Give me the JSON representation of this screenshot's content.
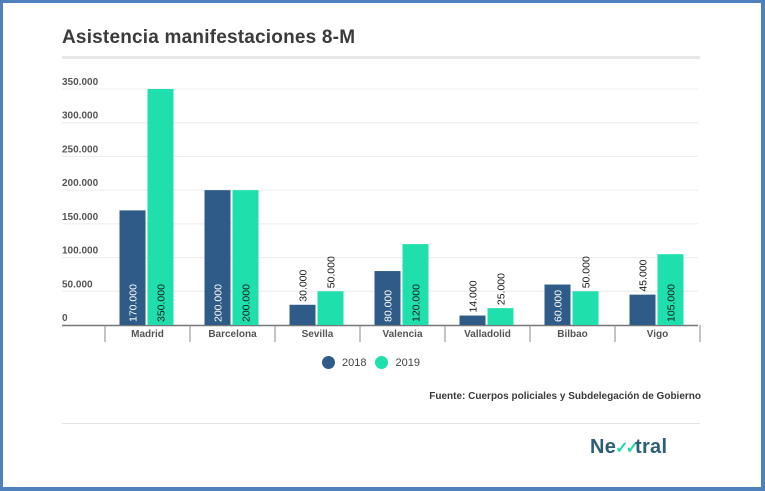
{
  "chart_data": {
    "type": "bar",
    "title": "Asistencia manifestaciones 8-M",
    "xlabel": "",
    "ylabel": "",
    "ylim": [
      0,
      350000
    ],
    "yticks": [
      0,
      50000,
      100000,
      150000,
      200000,
      250000,
      300000,
      350000
    ],
    "ytick_labels": [
      "0",
      "50.000",
      "100.000",
      "150.000",
      "200.000",
      "250.000",
      "300.000",
      "350.000"
    ],
    "grid": true,
    "categories": [
      "Madrid",
      "Barcelona",
      "Sevilla",
      "Valencia",
      "Valladolid",
      "Bilbao",
      "Vigo"
    ],
    "series": [
      {
        "name": "2018",
        "color": "#2e5b87",
        "values": [
          170000,
          200000,
          30000,
          80000,
          14000,
          60000,
          45000
        ],
        "labels": [
          "170.000",
          "200.000",
          "30.000",
          "80.000",
          "14.000",
          "60.000",
          "45.000"
        ]
      },
      {
        "name": "2019",
        "color": "#1fe0ac",
        "values": [
          350000,
          200000,
          50000,
          120000,
          25000,
          50000,
          105000
        ],
        "labels": [
          "350.000",
          "200.000",
          "50.000",
          "120.000",
          "25.000",
          "50.000",
          "105.000"
        ]
      }
    ],
    "legend_position": "bottom-center",
    "source": "Fuente: Cuerpos policiales y Subdelegación de Gobierno"
  },
  "legend": {
    "items": [
      {
        "label": "2018",
        "color": "#2e5b87"
      },
      {
        "label": "2019",
        "color": "#1fe0ac"
      }
    ]
  },
  "footer": {
    "source": "Fuente: Cuerpos policiales y Subdelegación de Gobierno",
    "logo_prefix": "Ne",
    "logo_check": "✓✓",
    "logo_suffix": "tral"
  },
  "frame_color": "#4f81bd"
}
